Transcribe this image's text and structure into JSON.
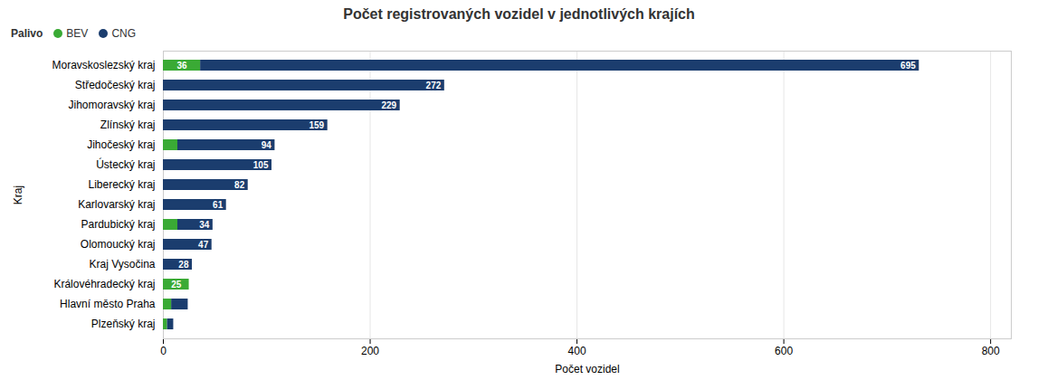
{
  "chart_data": {
    "type": "bar",
    "orientation": "horizontal",
    "stacked": true,
    "title": "Počet registrovaných vozidel v jednotlivých krajích",
    "xlabel": "Počet vozidel",
    "ylabel": "Kraj",
    "legend_title": "Palivo",
    "legend": "top-left",
    "grid": true,
    "data_labels": true,
    "categories": [
      "Plzeňský kraj",
      "Hlavní město Praha",
      "Královéhradecký kraj",
      "Kraj Vysočina",
      "Olomoucký kraj",
      "Pardubický kraj",
      "Karlovarský kraj",
      "Liberecký kraj",
      "Ústecký kraj",
      "Jihočeský kraj",
      "Zlínský kraj",
      "Jihomoravský kraj",
      "Středočeský kraj",
      "Moravskoslezský kraj"
    ],
    "series": [
      {
        "name": "BEV",
        "color": "#3aaa35",
        "values": [
          4,
          8,
          25,
          0,
          0,
          14,
          0,
          0,
          0,
          14,
          0,
          0,
          0,
          36
        ],
        "value_labels": [
          null,
          null,
          "25",
          null,
          null,
          null,
          null,
          null,
          null,
          null,
          null,
          null,
          null,
          "36"
        ]
      },
      {
        "name": "CNG",
        "color": "#1b3d6e",
        "values": [
          6,
          16,
          0,
          28,
          47,
          34,
          61,
          82,
          105,
          94,
          159,
          229,
          272,
          695
        ],
        "value_labels": [
          null,
          null,
          null,
          "28",
          "47",
          "34",
          "61",
          "82",
          "105",
          "94",
          "159",
          "229",
          "272",
          "695"
        ]
      }
    ],
    "xlim": [
      0,
      820
    ],
    "xticks": [
      0,
      200,
      400,
      600,
      800
    ]
  }
}
